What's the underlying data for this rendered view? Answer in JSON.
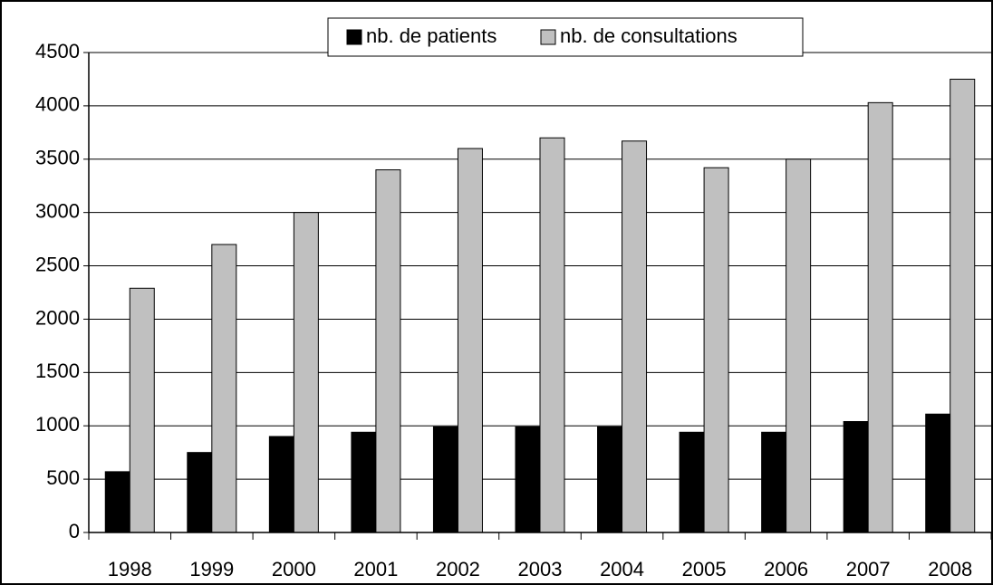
{
  "chart_data": {
    "type": "bar",
    "categories": [
      "1998",
      "1999",
      "2000",
      "2001",
      "2002",
      "2003",
      "2004",
      "2005",
      "2006",
      "2007",
      "2008"
    ],
    "series": [
      {
        "name": "nb. de patients",
        "color": "#000000",
        "values": [
          570,
          750,
          900,
          940,
          990,
          990,
          990,
          940,
          940,
          1040,
          1110
        ]
      },
      {
        "name": "nb. de consultations",
        "color": "#c0c0c0",
        "values": [
          2290,
          2700,
          3000,
          3400,
          3600,
          3700,
          3670,
          3420,
          3500,
          4030,
          4250
        ]
      }
    ],
    "ylim": [
      0,
      4500
    ],
    "yticks": [
      0,
      500,
      1000,
      1500,
      2000,
      2500,
      3000,
      3500,
      4000,
      4500
    ],
    "grid": true,
    "legend": "top"
  }
}
